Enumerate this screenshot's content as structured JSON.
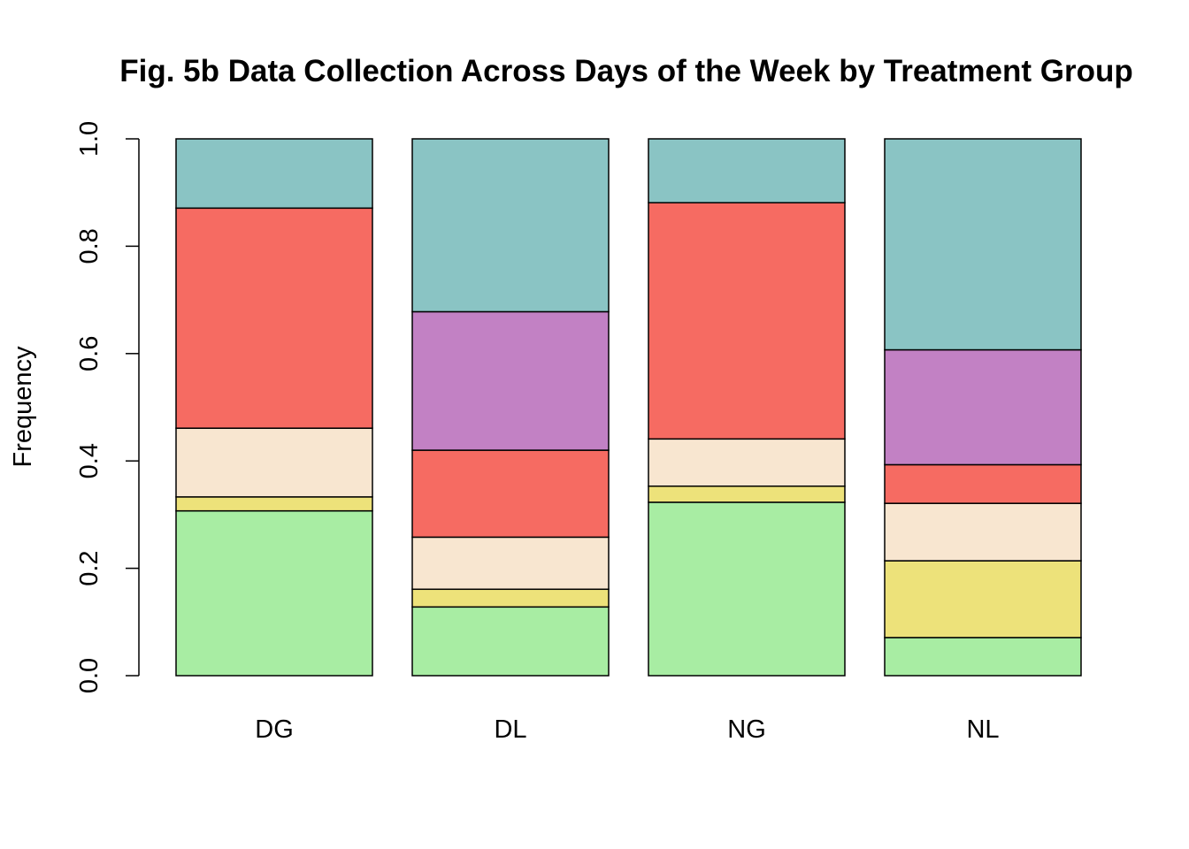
{
  "chart_data": {
    "type": "bar",
    "stacked": true,
    "title": "Fig. 5b Data Collection Across Days of the Week by Treatment Group",
    "xlabel": "",
    "ylabel": "Frequency",
    "ylim": [
      0,
      1
    ],
    "yticks": [
      "0.0",
      "0.2",
      "0.4",
      "0.6",
      "0.8",
      "1.0"
    ],
    "grid": false,
    "legend": "none",
    "categories": [
      "DG",
      "DL",
      "NG",
      "NL"
    ],
    "series": [
      {
        "color": "#a8eda3",
        "values": [
          0.307,
          0.128,
          0.323,
          0.071
        ]
      },
      {
        "color": "#ede27a",
        "values": [
          0.026,
          0.033,
          0.03,
          0.143
        ]
      },
      {
        "color": "#f8e6d0",
        "values": [
          0.128,
          0.097,
          0.088,
          0.107
        ]
      },
      {
        "color": "#f66b62",
        "values": [
          0.41,
          0.162,
          0.44,
          0.072
        ]
      },
      {
        "color": "#c281c4",
        "values": [
          0.0,
          0.258,
          0.0,
          0.214
        ]
      },
      {
        "color": "#8ac4c4",
        "values": [
          0.129,
          0.322,
          0.119,
          0.393
        ]
      }
    ]
  }
}
